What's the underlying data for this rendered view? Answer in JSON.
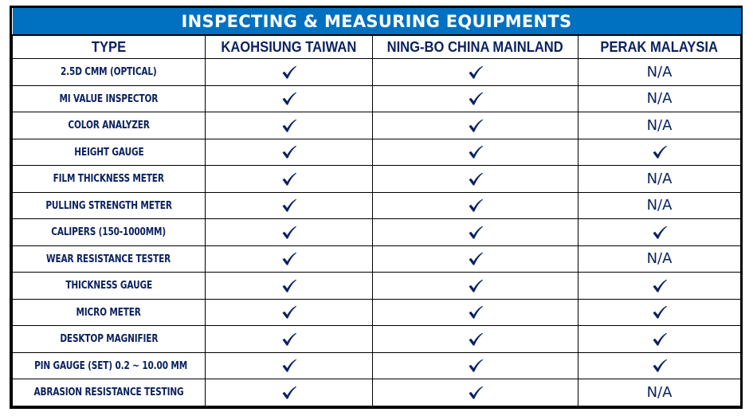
{
  "title": "INSPECTING & MEASURING EQUIPMENTS",
  "colors": {
    "title_bg": "#0070c0",
    "title_text": "#ffffff",
    "text": "#0b2260",
    "border": "#000000"
  },
  "headers": [
    "TYPE",
    "KAOHSIUNG TAIWAN",
    "NING-BO CHINA MAINLAND",
    "PERAK MALAYSIA"
  ],
  "rows": [
    {
      "type": "2.5D CMM (OPTICAL)",
      "kaohsiung": "check",
      "ningbo": "check",
      "perak": "N/A"
    },
    {
      "type": "MI VALUE INSPECTOR",
      "kaohsiung": "check",
      "ningbo": "check",
      "perak": "N/A"
    },
    {
      "type": "COLOR ANALYZER",
      "kaohsiung": "check",
      "ningbo": "check",
      "perak": "N/A"
    },
    {
      "type": "HEIGHT GAUGE",
      "kaohsiung": "check",
      "ningbo": "check",
      "perak": "check"
    },
    {
      "type": "FILM THICKNESS METER",
      "kaohsiung": "check",
      "ningbo": "check",
      "perak": "N/A"
    },
    {
      "type": "PULLING STRENGTH METER",
      "kaohsiung": "check",
      "ningbo": "check",
      "perak": "N/A"
    },
    {
      "type": "CALIPERS (150-1000MM)",
      "kaohsiung": "check",
      "ningbo": "check",
      "perak": "check"
    },
    {
      "type": "WEAR RESISTANCE TESTER",
      "kaohsiung": "check",
      "ningbo": "check",
      "perak": "N/A"
    },
    {
      "type": "THICKNESS GAUGE",
      "kaohsiung": "check",
      "ningbo": "check",
      "perak": "check"
    },
    {
      "type": "MICRO METER",
      "kaohsiung": "check",
      "ningbo": "check",
      "perak": "check"
    },
    {
      "type": "DESKTOP MAGNIFIER",
      "kaohsiung": "check",
      "ningbo": "check",
      "perak": "check"
    },
    {
      "type": "PIN GAUGE (SET) 0.2 ~ 10.00 MM",
      "kaohsiung": "check",
      "ningbo": "check",
      "perak": "check"
    },
    {
      "type": "ABRASION RESISTANCE TESTING",
      "kaohsiung": "check",
      "ningbo": "check",
      "perak": "N/A"
    }
  ]
}
